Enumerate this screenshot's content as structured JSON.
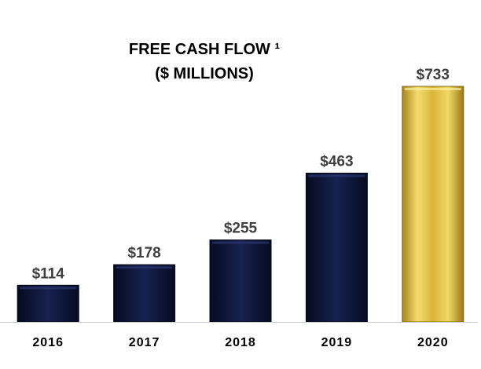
{
  "chart_data": {
    "type": "bar",
    "title": "FREE CASH FLOW ¹",
    "subtitle": "($ MILLIONS)",
    "categories": [
      "2016",
      "2017",
      "2018",
      "2019",
      "2020"
    ],
    "values": [
      114,
      178,
      255,
      463,
      733
    ],
    "data_labels": [
      "$114",
      "$178",
      "$255",
      "$463",
      "$733"
    ],
    "ylim": [
      0,
      800
    ],
    "grid": false,
    "legend": "none",
    "colors": {
      "default_bar": "#101a3f",
      "highlight_bar": "#d9b53a",
      "baseline": "#c8c8c8"
    },
    "highlight_index": 4
  }
}
